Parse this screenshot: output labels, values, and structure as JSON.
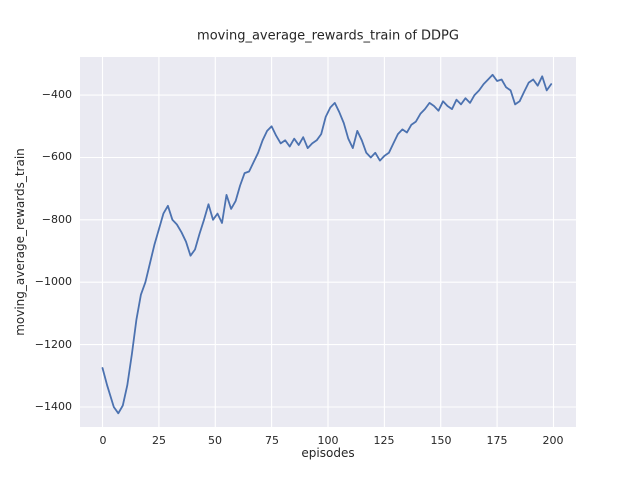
{
  "chart_data": {
    "type": "line",
    "title": "moving_average_rewards_train of DDPG",
    "xlabel": "episodes",
    "ylabel": "moving_average_rewards_train",
    "x_ticks": [
      0,
      25,
      50,
      75,
      100,
      125,
      150,
      175,
      200
    ],
    "y_ticks": [
      -400,
      -600,
      -800,
      -1000,
      -1200,
      -1400
    ],
    "xlim": [
      -10,
      210
    ],
    "ylim": [
      -1464,
      -278
    ],
    "grid": true,
    "legend_position": "none",
    "plot_background": "#EAEAF2",
    "grid_color": "#FFFFFF",
    "line_color": "#4C72B0",
    "series": [
      {
        "name": "moving_average_rewards_train",
        "x": [
          0,
          2,
          5,
          7,
          9,
          11,
          13,
          15,
          17,
          19,
          21,
          23,
          25,
          27,
          29,
          31,
          33,
          35,
          37,
          39,
          41,
          43,
          45,
          47,
          49,
          51,
          53,
          55,
          57,
          59,
          61,
          63,
          65,
          67,
          69,
          71,
          73,
          75,
          77,
          79,
          81,
          83,
          85,
          87,
          89,
          91,
          93,
          95,
          97,
          99,
          101,
          103,
          105,
          107,
          109,
          111,
          113,
          115,
          117,
          119,
          121,
          123,
          125,
          127,
          129,
          131,
          133,
          135,
          137,
          139,
          141,
          143,
          145,
          147,
          149,
          151,
          153,
          155,
          157,
          159,
          161,
          163,
          165,
          167,
          169,
          171,
          173,
          175,
          177,
          179,
          181,
          183,
          185,
          187,
          189,
          191,
          193,
          195,
          197,
          199
        ],
        "y": [
          -1275,
          -1330,
          -1400,
          -1420,
          -1395,
          -1330,
          -1230,
          -1120,
          -1040,
          -1000,
          -940,
          -880,
          -830,
          -780,
          -755,
          -800,
          -815,
          -840,
          -870,
          -915,
          -895,
          -845,
          -800,
          -750,
          -800,
          -780,
          -810,
          -720,
          -765,
          -740,
          -690,
          -650,
          -645,
          -615,
          -585,
          -545,
          -515,
          -500,
          -530,
          -555,
          -545,
          -565,
          -540,
          -560,
          -535,
          -570,
          -555,
          -545,
          -525,
          -470,
          -440,
          -425,
          -455,
          -490,
          -540,
          -570,
          -515,
          -545,
          -585,
          -600,
          -585,
          -610,
          -595,
          -585,
          -555,
          -525,
          -510,
          -520,
          -495,
          -485,
          -460,
          -445,
          -425,
          -435,
          -450,
          -420,
          -435,
          -445,
          -415,
          -430,
          -410,
          -425,
          -400,
          -385,
          -365,
          -350,
          -335,
          -355,
          -350,
          -375,
          -385,
          -430,
          -420,
          -390,
          -360,
          -350,
          -370,
          -340,
          -385,
          -365
        ]
      }
    ]
  }
}
